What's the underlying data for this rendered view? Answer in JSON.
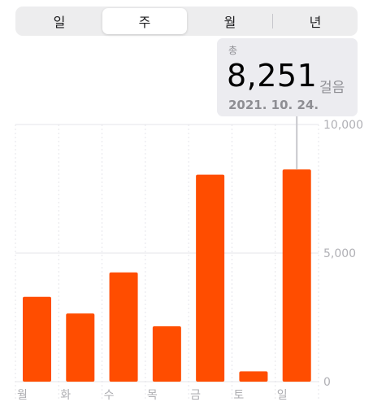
{
  "segmented_control": {
    "tabs": [
      {
        "label": "일",
        "active": false
      },
      {
        "label": "주",
        "active": true
      },
      {
        "label": "월",
        "active": false
      },
      {
        "label": "년",
        "active": false
      }
    ]
  },
  "callout": {
    "label": "총",
    "value": "8,251",
    "unit": "걸음",
    "date": "2021. 10. 24."
  },
  "colors": {
    "bar": "#ff4d00",
    "accent_line": "#c7c7cc"
  },
  "chart_data": {
    "type": "bar",
    "categories": [
      "월",
      "화",
      "수",
      "목",
      "금",
      "토",
      "일"
    ],
    "values": [
      3300,
      2650,
      4250,
      2150,
      8050,
      400,
      8251
    ],
    "y_ticks": [
      "0",
      "5,000",
      "10,000"
    ],
    "ylim": [
      0,
      10000
    ],
    "grid": true,
    "selected_index": 6
  }
}
